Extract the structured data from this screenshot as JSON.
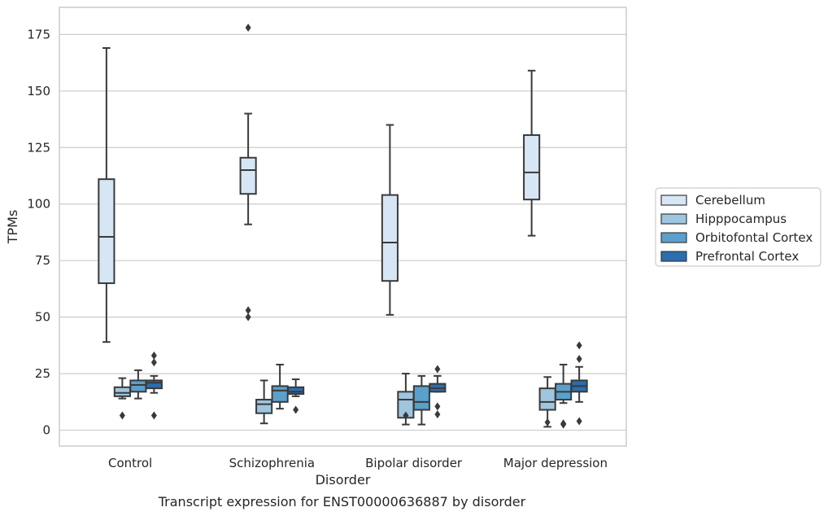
{
  "caption": "Transcript expression for ENST00000636887 by disorder",
  "chart_data": {
    "type": "box",
    "title": "",
    "xlabel": "Disorder",
    "ylabel": "TPMs",
    "ylim": [
      -7,
      187
    ],
    "yticks": [
      0,
      25,
      50,
      75,
      100,
      125,
      150,
      175
    ],
    "grid": "horizontal",
    "legend_position": "right",
    "categories": [
      "Control",
      "Schizophrenia",
      "Bipolar disorder",
      "Major depression"
    ],
    "series": [
      {
        "name": "Cerebellum",
        "color": "#d6e6f4",
        "boxes": [
          {
            "whislo": 39,
            "q1": 65,
            "med": 85.5,
            "q3": 111,
            "whishi": 169,
            "fliers": []
          },
          {
            "whislo": 91,
            "q1": 104.5,
            "med": 115,
            "q3": 120.5,
            "whishi": 140,
            "fliers": [
              50,
              53,
              178
            ]
          },
          {
            "whislo": 51,
            "q1": 66,
            "med": 83,
            "q3": 104,
            "whishi": 135,
            "fliers": []
          },
          {
            "whislo": 86,
            "q1": 102,
            "med": 114,
            "q3": 130.5,
            "whishi": 159,
            "fliers": []
          }
        ]
      },
      {
        "name": "Hipppocampus",
        "color": "#a0c6df",
        "boxes": [
          {
            "whislo": 14,
            "q1": 15,
            "med": 16.5,
            "q3": 19,
            "whishi": 23,
            "fliers": [
              6.5
            ]
          },
          {
            "whislo": 3,
            "q1": 7.5,
            "med": 11.5,
            "q3": 13.5,
            "whishi": 22,
            "fliers": []
          },
          {
            "whislo": 2.5,
            "q1": 5.5,
            "med": 13.5,
            "q3": 17,
            "whishi": 25,
            "fliers": [
              6.5
            ]
          },
          {
            "whislo": 1.5,
            "q1": 9,
            "med": 12.5,
            "q3": 18.5,
            "whishi": 23.5,
            "fliers": [
              3.5
            ]
          }
        ]
      },
      {
        "name": "Orbitofontal Cortex",
        "color": "#5b9fcb",
        "boxes": [
          {
            "whislo": 14,
            "q1": 17,
            "med": 20,
            "q3": 22,
            "whishi": 26.5,
            "fliers": []
          },
          {
            "whislo": 9.5,
            "q1": 12.5,
            "med": 17.5,
            "q3": 19.5,
            "whishi": 29,
            "fliers": []
          },
          {
            "whislo": 2.5,
            "q1": 9,
            "med": 12.5,
            "q3": 19.5,
            "whishi": 24,
            "fliers": []
          },
          {
            "whislo": 12,
            "q1": 13.5,
            "med": 17,
            "q3": 20.5,
            "whishi": 29,
            "fliers": [
              2.5,
              3
            ]
          }
        ]
      },
      {
        "name": "Prefrontal Cortex",
        "color": "#2c6ead",
        "boxes": [
          {
            "whislo": 16.5,
            "q1": 18.5,
            "med": 21,
            "q3": 22,
            "whishi": 24,
            "fliers": [
              6.5,
              30,
              33
            ]
          },
          {
            "whislo": 15,
            "q1": 16,
            "med": 17,
            "q3": 19,
            "whishi": 22.5,
            "fliers": [
              9
            ]
          },
          {
            "whislo": 17,
            "q1": 17,
            "med": 18.5,
            "q3": 20.5,
            "whishi": 24,
            "fliers": [
              7,
              10.5,
              27
            ]
          },
          {
            "whislo": 12.5,
            "q1": 17,
            "med": 19.5,
            "q3": 22,
            "whishi": 28,
            "fliers": [
              4,
              31.5,
              37.5
            ]
          }
        ]
      }
    ]
  }
}
